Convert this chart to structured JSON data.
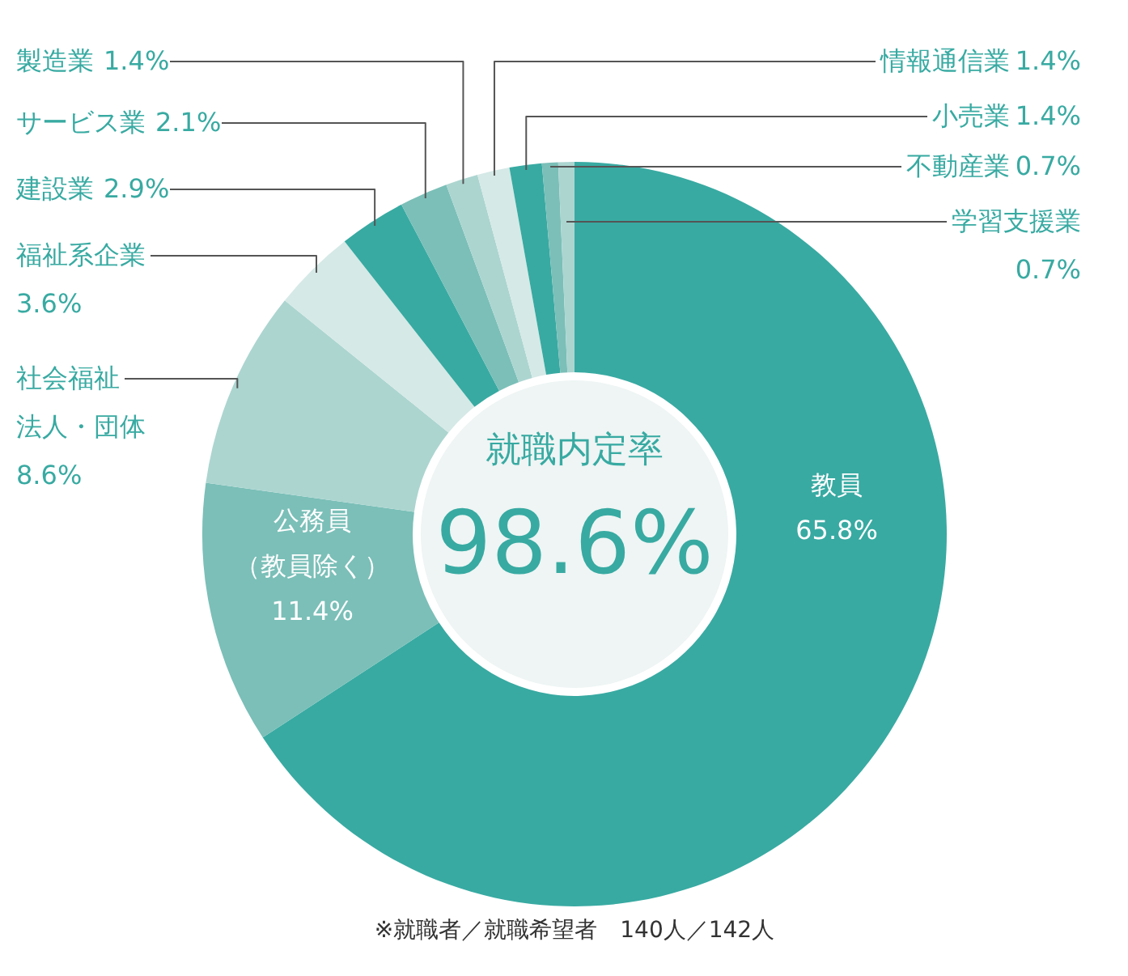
{
  "chart_data": {
    "type": "donut",
    "categories": [
      "教員",
      "公務員（教員除く）",
      "社会福祉法人・団体",
      "福祉系企業",
      "建設業",
      "サービス業",
      "製造業",
      "情報通信業",
      "小売業",
      "不動産業",
      "学習支援業"
    ],
    "values": [
      65.8,
      11.4,
      8.6,
      3.6,
      2.9,
      2.1,
      1.4,
      1.4,
      1.4,
      0.7,
      0.7
    ],
    "colors": [
      "#38aaa2",
      "#7bbfb8",
      "#acd5d0",
      "#d5e9e6",
      "#38aaa2",
      "#7bbfb8",
      "#acd5d0",
      "#d5e9e6",
      "#38aaa2",
      "#7bbfb8",
      "#acd5d0"
    ],
    "value_labels": [
      "65.8%",
      "11.4%",
      "8.6%",
      "3.6%",
      "2.9%",
      "2.1%",
      "1.4%",
      "1.4%",
      "1.4%",
      "0.7%",
      "0.7%"
    ],
    "annotations": [
      "就職内定率",
      "98.6%",
      "※就職者／就職希望者　140人／142人"
    ]
  }
}
